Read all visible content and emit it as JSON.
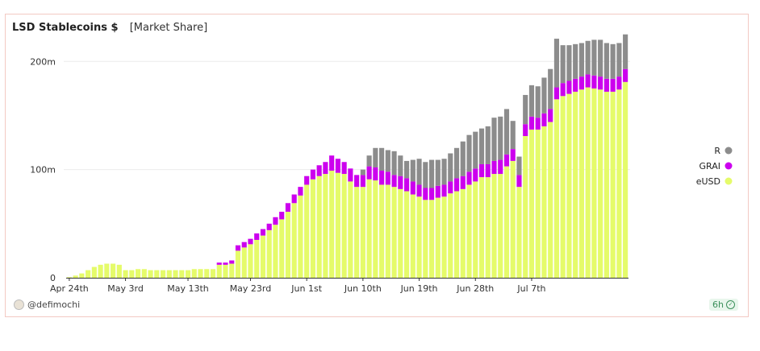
{
  "header": {
    "title": "LSD Stablecoins $",
    "subtitle": "[Market Share]"
  },
  "footer": {
    "author": "@defimochi",
    "refresh_badge": "6h"
  },
  "colors": {
    "eUSD": "#e5fb6a",
    "GRAI": "#cc00ee",
    "R": "#8c8c8c"
  },
  "chart_data": {
    "type": "bar",
    "stacked": true,
    "title": "LSD Stablecoins $",
    "subtitle": "[Market Share]",
    "x_tick_labels": [
      "Apr 24th",
      "May 3rd",
      "May 13th",
      "May 23rd",
      "Jun 1st",
      "Jun 10th",
      "Jun 19th",
      "Jun 28th",
      "Jul 7th"
    ],
    "x_tick_index": [
      0,
      9,
      19,
      29,
      38,
      47,
      56,
      65,
      74
    ],
    "y_ticks": [
      0,
      100,
      200
    ],
    "y_tick_labels": [
      "0",
      "100m",
      "200m"
    ],
    "ylim": [
      0,
      230
    ],
    "legend": {
      "placement": "right",
      "entries": [
        "R",
        "GRAI",
        "eUSD"
      ]
    },
    "grid": true,
    "series": [
      {
        "name": "eUSD",
        "values": [
          0.5,
          2,
          4,
          7,
          10,
          12,
          13,
          13,
          12,
          7,
          7,
          8,
          8,
          7,
          7,
          7,
          7,
          7,
          7,
          7,
          8,
          8,
          8,
          8,
          12,
          12,
          13,
          25,
          28,
          31,
          35,
          39,
          44,
          49,
          54,
          61,
          69,
          76,
          86,
          91,
          94,
          96,
          99,
          97,
          96,
          89,
          84,
          84,
          91,
          90,
          86,
          86,
          84,
          82,
          80,
          77,
          75,
          72,
          72,
          74,
          75,
          78,
          80,
          82,
          86,
          89,
          93,
          93,
          96,
          96,
          103,
          108,
          84,
          131,
          137,
          137,
          140,
          144,
          165,
          168,
          170,
          172,
          174,
          176,
          175,
          174,
          172,
          172,
          174,
          181
        ]
      },
      {
        "name": "GRAI",
        "values": [
          0,
          0,
          0,
          0,
          0,
          0,
          0,
          0,
          0,
          0,
          0,
          0,
          0,
          0,
          0,
          0,
          0,
          0,
          0,
          0,
          0,
          0,
          0,
          0,
          2,
          2,
          3,
          5,
          5,
          5,
          6,
          6,
          6,
          7,
          7,
          8,
          8,
          8,
          8,
          9,
          10,
          11,
          14,
          13,
          11,
          12,
          11,
          11,
          12,
          12,
          13,
          12,
          11,
          12,
          12,
          12,
          11,
          11,
          11,
          11,
          11,
          11,
          12,
          12,
          12,
          12,
          12,
          12,
          12,
          13,
          11,
          11,
          11,
          11,
          12,
          11,
          12,
          12,
          11,
          12,
          12,
          12,
          12,
          12,
          12,
          12,
          12,
          12,
          12,
          12
        ]
      },
      {
        "name": "R",
        "values": [
          0,
          0,
          0,
          0,
          0,
          0,
          0,
          0,
          0,
          0,
          0,
          0,
          0,
          0,
          0,
          0,
          0,
          0,
          0,
          0,
          0,
          0,
          0,
          0,
          0,
          0,
          0,
          0,
          0,
          0,
          0,
          0,
          0,
          0,
          0,
          0,
          0,
          0,
          0,
          0,
          0,
          0,
          0,
          0,
          0,
          0,
          0,
          5,
          10,
          18,
          21,
          20,
          22,
          19,
          16,
          20,
          24,
          24,
          26,
          24,
          24,
          26,
          28,
          32,
          34,
          34,
          33,
          35,
          40,
          40,
          42,
          26,
          17,
          27,
          29,
          29,
          33,
          37,
          45,
          35,
          33,
          32,
          31,
          31,
          33,
          34,
          33,
          32,
          31,
          32
        ]
      }
    ]
  }
}
